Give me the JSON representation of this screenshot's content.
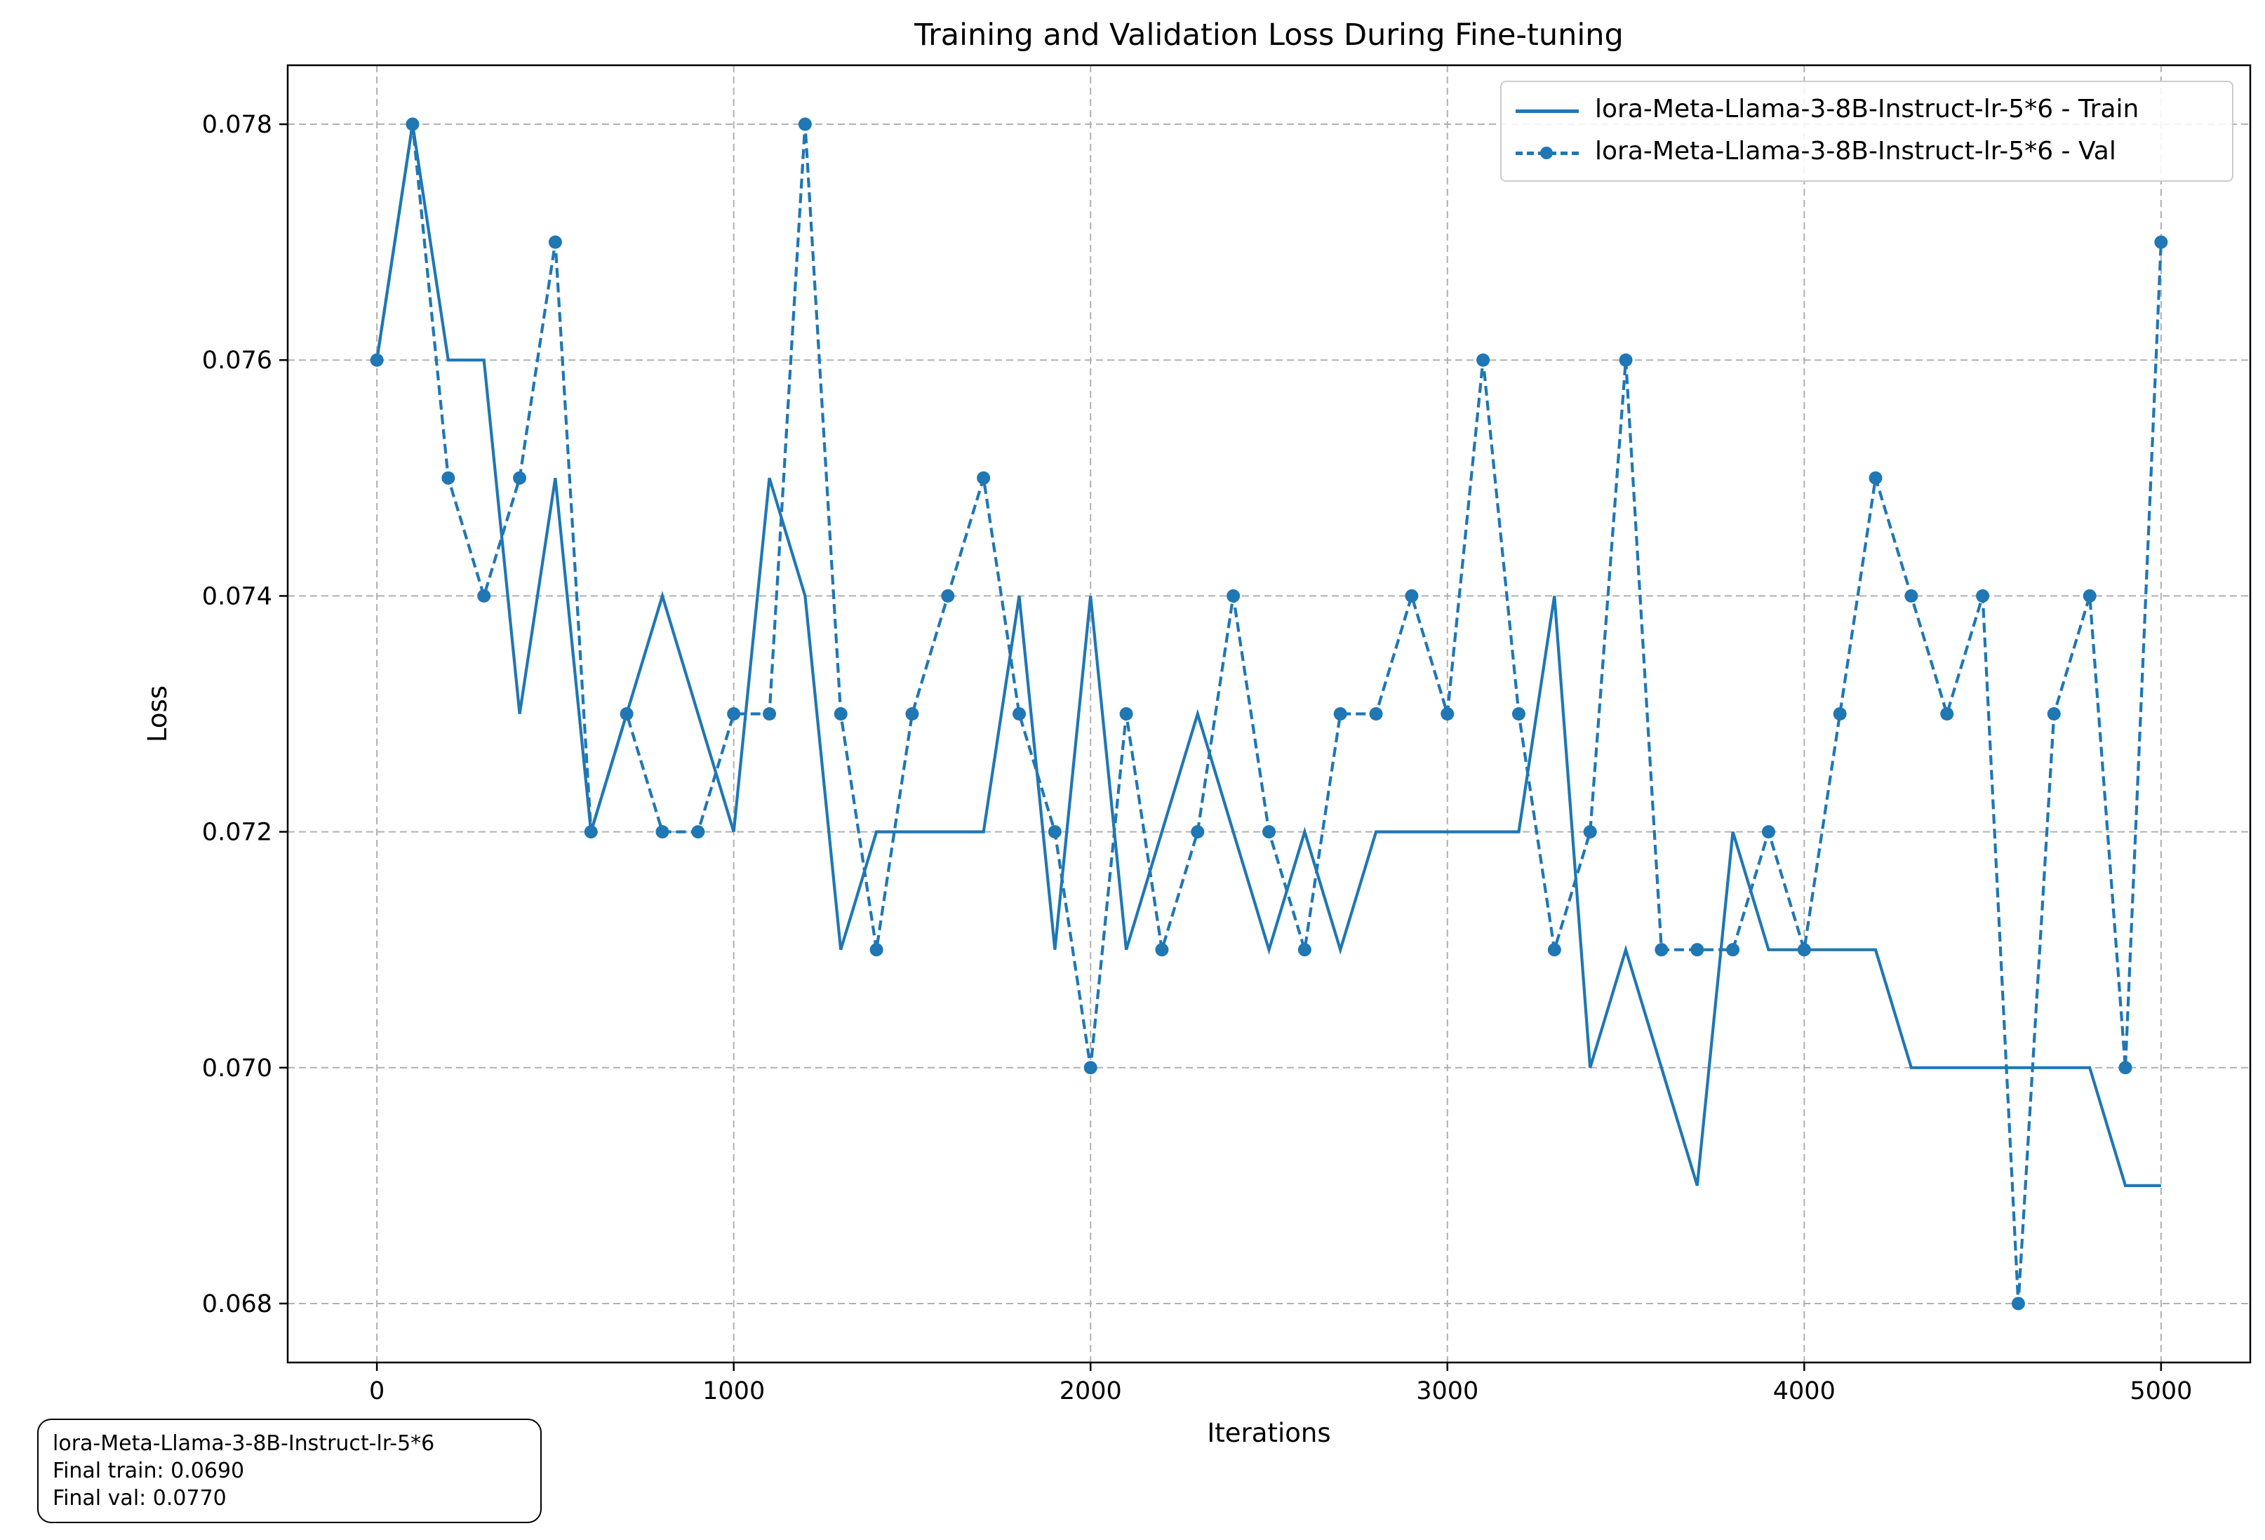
{
  "chart_data": {
    "type": "line",
    "title": "Training and Validation Loss During Fine-tuning",
    "xlabel": "Iterations",
    "ylabel": "Loss",
    "xlim": [
      -250,
      5250
    ],
    "ylim": [
      0.0675,
      0.0785
    ],
    "xticks": [
      0,
      1000,
      2000,
      3000,
      4000,
      5000
    ],
    "yticks": [
      0.068,
      0.07,
      0.072,
      0.074,
      0.076,
      0.078
    ],
    "ytick_labels": [
      "0.068",
      "0.070",
      "0.072",
      "0.074",
      "0.076",
      "0.078"
    ],
    "grid": true,
    "legend_position": "top-right",
    "x": [
      0,
      100,
      200,
      300,
      400,
      500,
      600,
      700,
      800,
      900,
      1000,
      1100,
      1200,
      1300,
      1400,
      1500,
      1600,
      1700,
      1800,
      1900,
      2000,
      2100,
      2200,
      2300,
      2400,
      2500,
      2600,
      2700,
      2800,
      2900,
      3000,
      3100,
      3200,
      3300,
      3400,
      3500,
      3600,
      3700,
      3800,
      3900,
      4000,
      4100,
      4200,
      4300,
      4400,
      4500,
      4600,
      4700,
      4800,
      4900,
      5000
    ],
    "series": [
      {
        "name": "lora-Meta-Llama-3-8B-Instruct-lr-5*6 - Train",
        "style": "solid",
        "values": [
          0.076,
          0.078,
          0.076,
          0.076,
          0.073,
          0.075,
          0.072,
          0.073,
          0.074,
          0.073,
          0.072,
          0.075,
          0.074,
          0.071,
          0.072,
          0.072,
          0.072,
          0.072,
          0.074,
          0.071,
          0.074,
          0.071,
          0.072,
          0.073,
          0.072,
          0.071,
          0.072,
          0.071,
          0.072,
          0.072,
          0.072,
          0.072,
          0.072,
          0.074,
          0.07,
          0.071,
          0.07,
          0.069,
          0.072,
          0.071,
          0.071,
          0.071,
          0.071,
          0.07,
          0.07,
          0.07,
          0.07,
          0.07,
          0.07,
          0.069,
          0.069
        ]
      },
      {
        "name": "lora-Meta-Llama-3-8B-Instruct-lr-5*6 - Val",
        "style": "dashed",
        "marker": "circle",
        "values": [
          0.076,
          0.078,
          0.075,
          0.074,
          0.075,
          0.077,
          0.072,
          0.073,
          0.072,
          0.072,
          0.073,
          0.073,
          0.078,
          0.073,
          0.071,
          0.073,
          0.074,
          0.075,
          0.073,
          0.072,
          0.07,
          0.073,
          0.071,
          0.072,
          0.074,
          0.072,
          0.071,
          0.073,
          0.073,
          0.074,
          0.073,
          0.076,
          0.073,
          0.071,
          0.072,
          0.076,
          0.071,
          0.071,
          0.071,
          0.072,
          0.071,
          0.073,
          0.075,
          0.074,
          0.073,
          0.074,
          0.068,
          0.073,
          0.074,
          0.07,
          0.077
        ]
      }
    ],
    "color": "#1f77b4"
  },
  "annotation": {
    "line1": "lora-Meta-Llama-3-8B-Instruct-lr-5*6",
    "line2": "Final train: 0.0690",
    "line3": "Final val: 0.0770"
  }
}
